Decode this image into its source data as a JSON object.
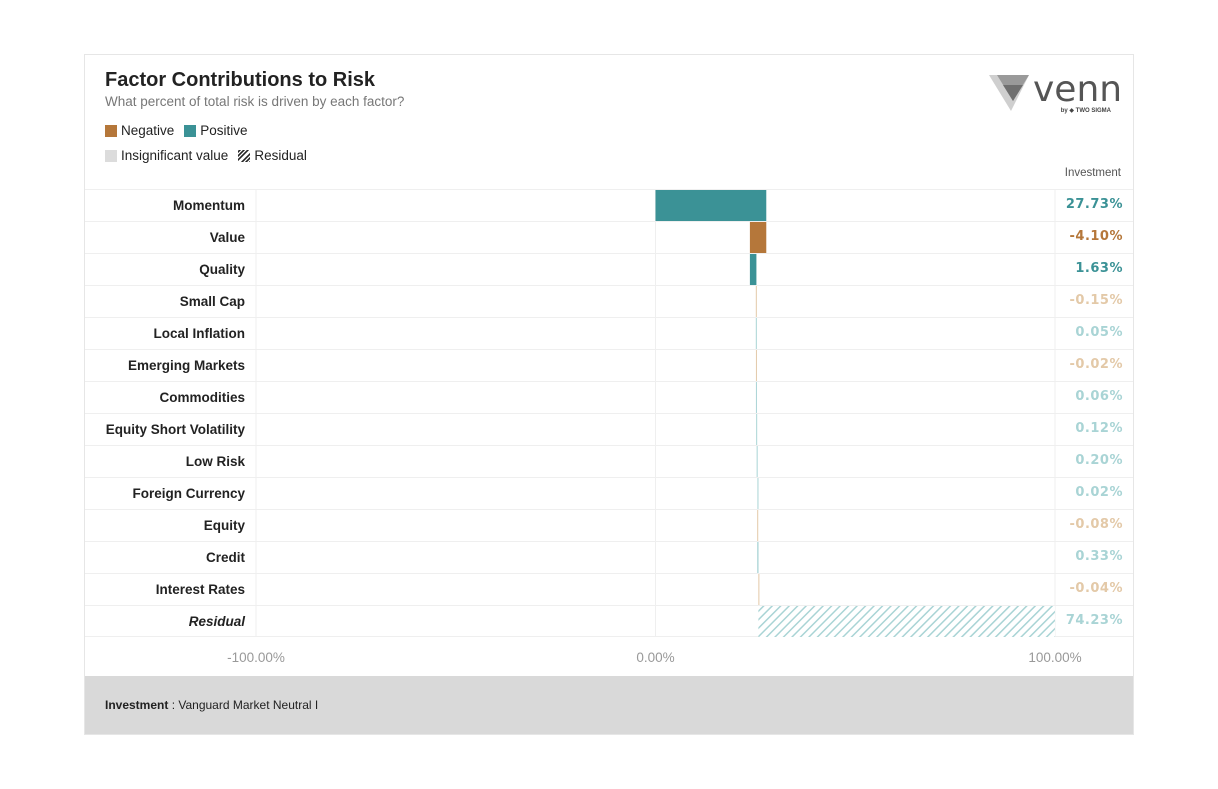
{
  "chart_data": {
    "type": "bar",
    "title": "Factor Contributions to Risk",
    "subtitle": "What percent of total risk is driven by each factor?",
    "legend": [
      {
        "name": "Negative",
        "color": "#b5773a"
      },
      {
        "name": "Positive",
        "color": "#3b9296"
      },
      {
        "name": "Insignificant value",
        "color": "#dcdcdc"
      },
      {
        "name": "Residual",
        "pattern": "hatched"
      }
    ],
    "column_header": "Investment",
    "categories": [
      "Momentum",
      "Value",
      "Quality",
      "Small Cap",
      "Local Inflation",
      "Emerging Markets",
      "Commodities",
      "Equity Short Volatility",
      "Low Risk",
      "Foreign Currency",
      "Equity",
      "Credit",
      "Interest Rates",
      "Residual"
    ],
    "values": [
      27.73,
      -4.1,
      1.63,
      -0.15,
      0.05,
      -0.02,
      0.06,
      0.12,
      0.2,
      0.02,
      -0.08,
      0.33,
      -0.04,
      74.23
    ],
    "value_labels": [
      "27.73%",
      "-4.10%",
      "1.63%",
      "-0.15%",
      "0.05%",
      "-0.02%",
      "0.06%",
      "0.12%",
      "0.20%",
      "0.02%",
      "-0.08%",
      "0.33%",
      "-0.04%",
      "74.23%"
    ],
    "significant": [
      true,
      true,
      true,
      false,
      false,
      false,
      false,
      false,
      false,
      false,
      false,
      false,
      false,
      false
    ],
    "xlim": [
      -100,
      100
    ],
    "x_ticks": [
      "-100.00%",
      "0.00%",
      "100.00%"
    ],
    "x_tick_values": [
      -100,
      0,
      100
    ],
    "waterfall": true
  },
  "colors": {
    "negative": "#b5773a",
    "positive": "#3b9296",
    "negative_faded": "#e3c9a8",
    "positive_faded": "#a9d4d5"
  },
  "logo": {
    "brand": "venn",
    "by": "by ◆ TWO SIGMA"
  },
  "footer": {
    "label": "Investment",
    "value": "Vanguard Market Neutral I"
  }
}
